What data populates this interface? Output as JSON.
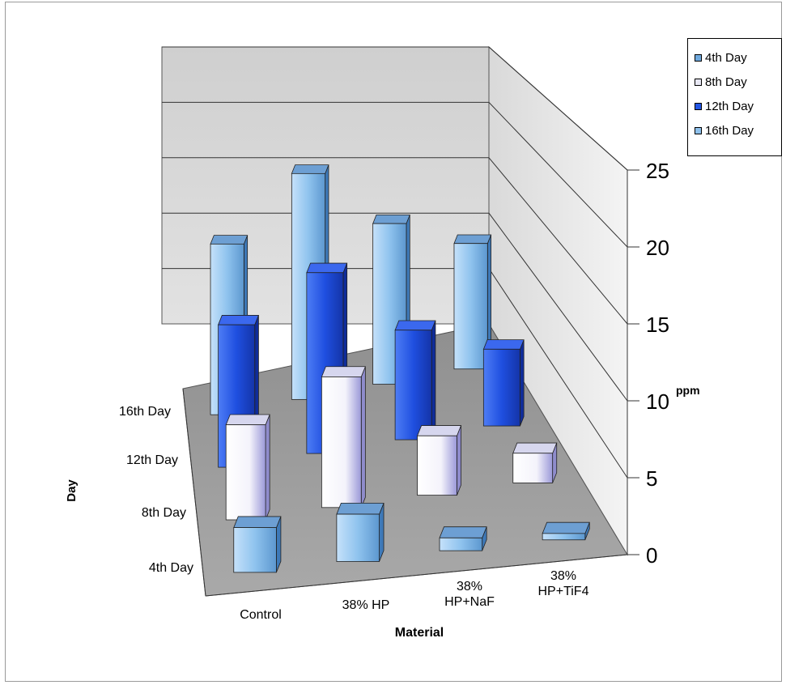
{
  "chart_data": {
    "type": "bar",
    "subtype": "3d-column",
    "title": "",
    "categories": [
      "Control",
      "38% HP",
      "38%\nHP+NaF",
      "38%\nHP+TiF4"
    ],
    "category_labels": [
      [
        "Control"
      ],
      [
        "38% HP"
      ],
      [
        "38%",
        "HP+NaF"
      ],
      [
        "38%",
        "HP+TiF4"
      ]
    ],
    "depth_labels": [
      "4th Day",
      "8th Day",
      "12th Day",
      "16th Day"
    ],
    "series": [
      {
        "name": "4th Day",
        "values": [
          3.5,
          3.7,
          1.0,
          0.5
        ],
        "color": "#8fc1ec"
      },
      {
        "name": "8th Day",
        "values": [
          8.0,
          11.0,
          5.0,
          2.5
        ],
        "color": "#ffffff"
      },
      {
        "name": "12th Day",
        "values": [
          13.0,
          16.5,
          10.0,
          7.0
        ],
        "color": "#1f4fe0"
      },
      {
        "name": "16th Day",
        "values": [
          17.0,
          22.5,
          16.0,
          12.5
        ],
        "color": "#8fc1ec"
      }
    ],
    "xlabel": "Material",
    "ylabel": "ppm",
    "zlabel": "Day",
    "y_ticks": [
      0,
      5,
      10,
      15,
      20,
      25
    ],
    "ylim": [
      0,
      25
    ],
    "grid": true,
    "legend_position": "top-right"
  }
}
